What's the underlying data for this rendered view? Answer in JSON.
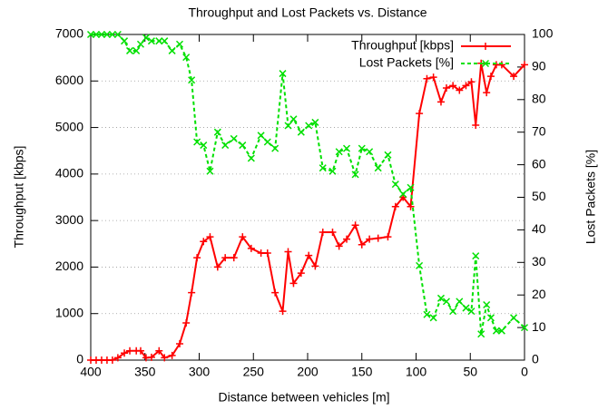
{
  "chart_data": {
    "type": "line",
    "title": "Throughput and Lost Packets vs. Distance",
    "xlabel": "Distance between vehicles [m]",
    "ylabel": "Throughput [kbps]",
    "y2label": "Lost Packets [%]",
    "x": [
      400,
      395,
      390,
      385,
      380,
      375,
      369,
      364,
      358,
      354,
      349,
      344,
      337,
      332,
      325,
      318,
      312,
      307,
      302,
      296,
      290,
      283,
      276,
      268,
      260,
      252,
      243,
      237,
      230,
      223,
      218,
      213,
      206,
      199,
      193,
      186,
      177,
      171,
      164,
      156,
      150,
      143,
      135,
      126,
      119,
      112,
      105,
      97,
      90,
      84,
      77,
      72,
      66,
      60,
      54,
      49,
      45,
      40,
      35,
      31,
      26,
      21,
      10,
      0
    ],
    "series": [
      {
        "name": "Throughput [kbps]",
        "color": "#ff0000",
        "marker": "plus",
        "dashed": false,
        "values": [
          0,
          0,
          0,
          0,
          0,
          50,
          150,
          200,
          200,
          200,
          50,
          60,
          200,
          50,
          100,
          350,
          800,
          1450,
          2200,
          2550,
          2650,
          2000,
          2200,
          2200,
          2650,
          2400,
          2300,
          2300,
          1450,
          1050,
          2330,
          1650,
          1870,
          2250,
          2020,
          2750,
          2750,
          2450,
          2600,
          2900,
          2480,
          2600,
          2620,
          2650,
          3300,
          3500,
          3300,
          5300,
          6050,
          6080,
          5550,
          5850,
          5900,
          5800,
          5900,
          5980,
          5050,
          6380,
          5750,
          6100,
          6350,
          6350,
          6100,
          6350
        ]
      },
      {
        "name": "Lost Packets [%]",
        "color": "#00e000",
        "marker": "cross",
        "dashed": true,
        "axis": "y2",
        "values": [
          100,
          100,
          100,
          100,
          100,
          100,
          98,
          95,
          95,
          97,
          99,
          98,
          98,
          98,
          95,
          97,
          93,
          86,
          67,
          66,
          58,
          70,
          66,
          68,
          66,
          62,
          69,
          67,
          65,
          88,
          72,
          74,
          70,
          72,
          73,
          59,
          58,
          64,
          65,
          57,
          65,
          64,
          59,
          63,
          54,
          51,
          53,
          29,
          14,
          13,
          19,
          18,
          15,
          18,
          16,
          15,
          32,
          8,
          17,
          13,
          9,
          9,
          13,
          10
        ]
      }
    ],
    "xlim": [
      400,
      0
    ],
    "xticks": [
      400,
      350,
      300,
      250,
      200,
      150,
      100,
      50,
      0
    ],
    "ylim": [
      0,
      7000
    ],
    "yticks": [
      0,
      1000,
      2000,
      3000,
      4000,
      5000,
      6000,
      7000
    ],
    "y2lim": [
      0,
      100
    ],
    "y2ticks": [
      0,
      10,
      20,
      30,
      40,
      50,
      60,
      70,
      80,
      90,
      100
    ],
    "grid": true,
    "legend": "top right"
  }
}
